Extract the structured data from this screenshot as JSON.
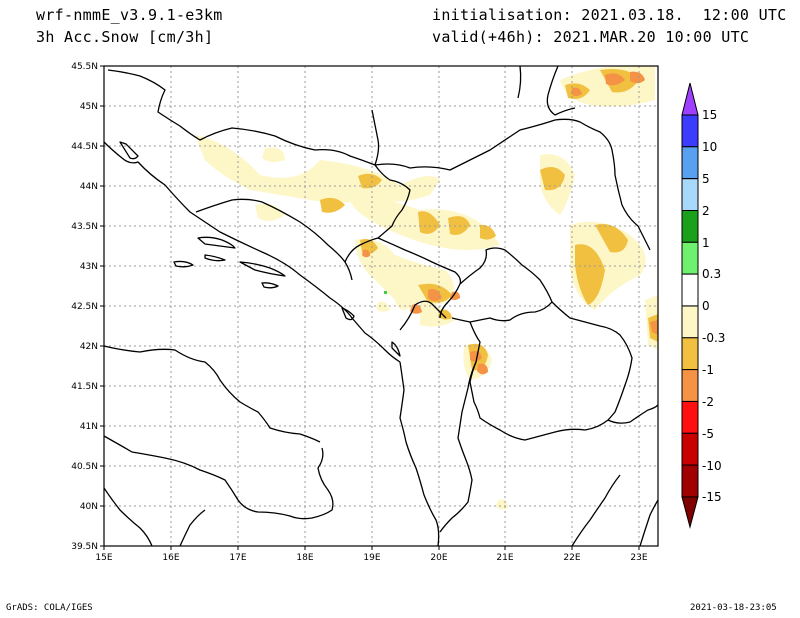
{
  "header": {
    "model": "wrf-nmmE_v3.9.1-e3km",
    "field": "3h Acc.Snow [cm/3h]",
    "init": "initialisation: 2021.03.18.  12:00 UTC",
    "valid": "valid(+46h): 2021.MAR.20 10:00 UTC"
  },
  "footer": {
    "left": "GrADS: COLA/IGES",
    "right": "2021-03-18-23:05"
  },
  "map": {
    "lon_range": [
      15,
      23.3
    ],
    "lat_range": [
      39.5,
      45.5
    ],
    "lon_ticks": [
      "15E",
      "16E",
      "17E",
      "18E",
      "19E",
      "20E",
      "21E",
      "22E",
      "23E"
    ],
    "lat_ticks": [
      "45.5N",
      "45N",
      "44.5N",
      "44N",
      "43.5N",
      "43N",
      "42.5N",
      "42N",
      "41.5N",
      "41N",
      "40.5N",
      "40N",
      "39.5N"
    ],
    "grid": "dotted",
    "colors": {
      "light": "#fdf7c8",
      "yellow": "#f2c040",
      "orange": "#f49246",
      "green": "#44cc44"
    }
  },
  "colorbar": {
    "labels": [
      "15",
      "10",
      "5",
      "2",
      "1",
      "0.3",
      "0",
      "-0.3",
      "-1",
      "-2",
      "-5",
      "-10",
      "-15"
    ],
    "colors": [
      "#3c3cff",
      "#5aa0f0",
      "#a8d8fa",
      "#1aa01a",
      "#6ff06f",
      "#ffffff",
      "#ffffff",
      "#fdf7c8",
      "#f2c040",
      "#f49246",
      "#ff1010",
      "#c80000",
      "#a00000"
    ],
    "top_arrow_color": "#a040ff",
    "bottom_arrow_color": "#800000"
  }
}
